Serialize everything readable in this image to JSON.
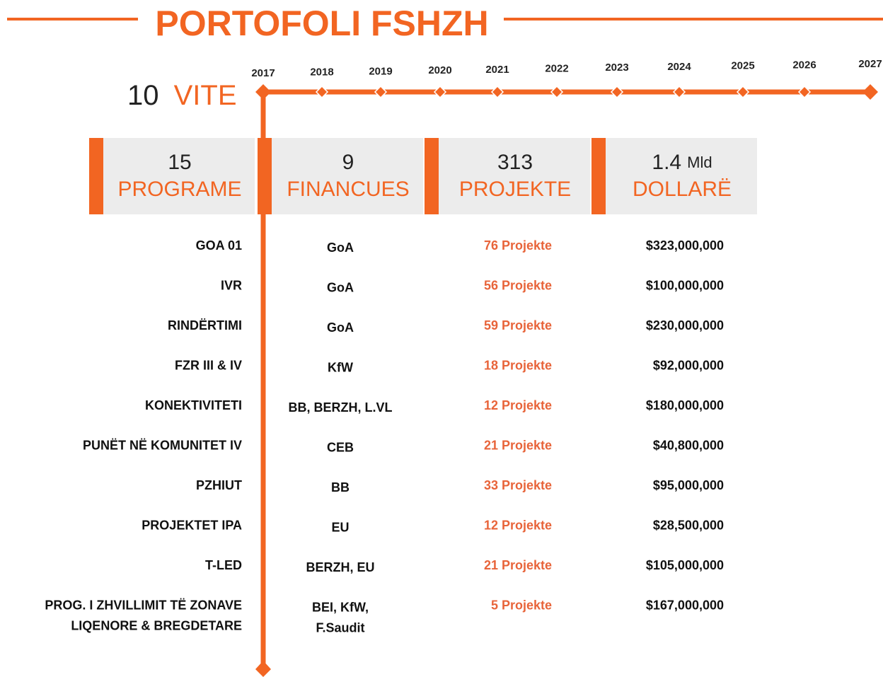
{
  "header": {
    "title": "PORTOFOLI FSHZH"
  },
  "duration": {
    "number": "10",
    "label": "VITE"
  },
  "timeline": {
    "years": [
      "2017",
      "2018",
      "2019",
      "2020",
      "2021",
      "2022",
      "2023",
      "2024",
      "2025",
      "2026",
      "2027"
    ]
  },
  "summary": [
    {
      "number": "15",
      "label": "PROGRAME"
    },
    {
      "number": "9",
      "label": "FINANCUES"
    },
    {
      "number": "313",
      "label": "PROJEKTE"
    },
    {
      "number": "1.4",
      "unit": "Mld",
      "label": "DOLLARË"
    }
  ],
  "table": {
    "rows": [
      {
        "program": [
          "GOA 01"
        ],
        "financer": [
          "GoA"
        ],
        "projects": "76 Projekte",
        "amount": "$323,000,000"
      },
      {
        "program": [
          "IVR"
        ],
        "financer": [
          "GoA"
        ],
        "projects": "56 Projekte",
        "amount": "$100,000,000"
      },
      {
        "program": [
          "RINDËRTIMI"
        ],
        "financer": [
          "GoA"
        ],
        "projects": "59 Projekte",
        "amount": "$230,000,000"
      },
      {
        "program": [
          "FZR III & IV"
        ],
        "financer": [
          "KfW"
        ],
        "projects": "18 Projekte",
        "amount": "$92,000,000"
      },
      {
        "program": [
          "KONEKTIVITETI"
        ],
        "financer": [
          "BB, BERZH, L.VL"
        ],
        "projects": "12 Projekte",
        "amount": "$180,000,000"
      },
      {
        "program": [
          "PUNËT NË KOMUNITET IV"
        ],
        "financer": [
          "CEB"
        ],
        "projects": "21 Projekte",
        "amount": "$40,800,000"
      },
      {
        "program": [
          "PZHIUT"
        ],
        "financer": [
          "BB"
        ],
        "projects": "33 Projekte",
        "amount": "$95,000,000"
      },
      {
        "program": [
          "PROJEKTET IPA"
        ],
        "financer": [
          "EU"
        ],
        "projects": "12 Projekte",
        "amount": "$28,500,000"
      },
      {
        "program": [
          "T-LED"
        ],
        "financer": [
          "BERZH, EU"
        ],
        "projects": "21 Projekte",
        "amount": "$105,000,000"
      },
      {
        "program": [
          "PROG. I ZHVILLIMIT TË ZONAVE",
          "LIQENORE & BREGDETARE"
        ],
        "financer": [
          "BEI, KfW,",
          "F.Saudit"
        ],
        "projects": "5 Projekte",
        "amount": "$167,000,000"
      }
    ]
  }
}
